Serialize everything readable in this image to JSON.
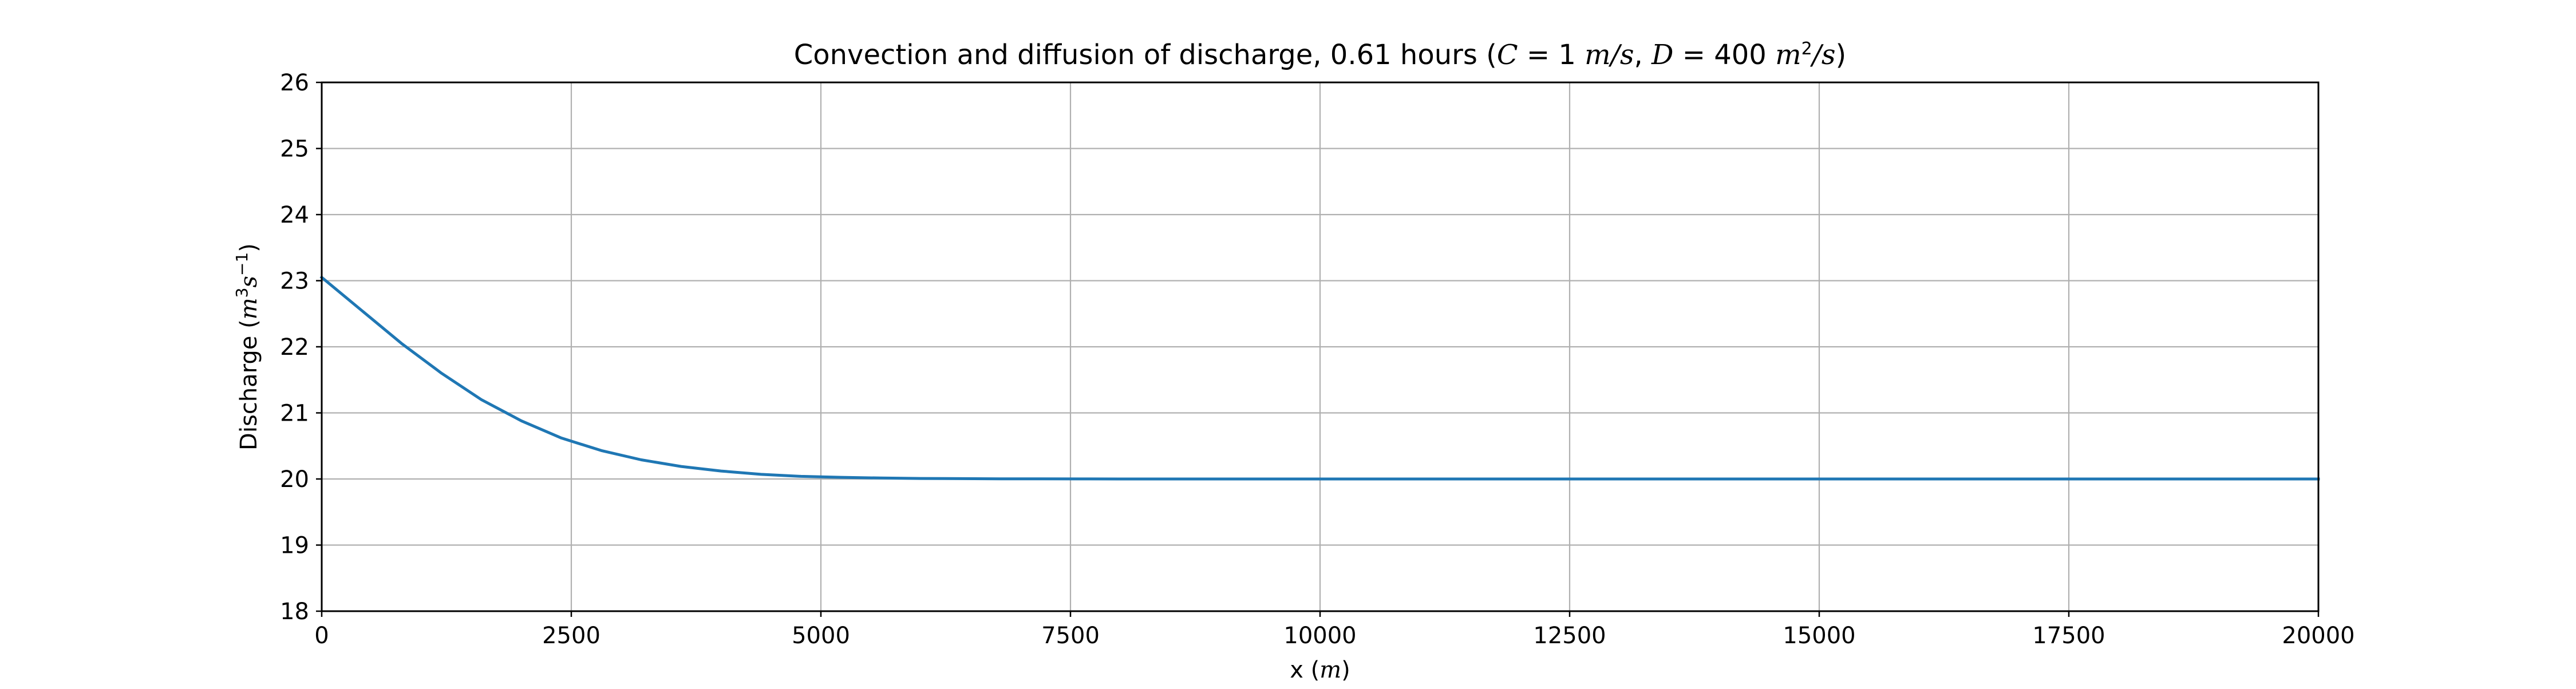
{
  "chart_data": {
    "type": "line",
    "title_parts": {
      "prefix": "Convection and diffusion of discharge, 0.61 hours (",
      "c_expr": "C",
      "c_eq": " = 1",
      "c_unit": "m/s",
      "sep": ", ",
      "d_expr": "D",
      "d_eq": " = 400",
      "d_unit": "m",
      "d_unit_exp": "2",
      "d_unit_tail": "/s",
      "suffix": ")"
    },
    "xlabel_parts": {
      "text": "x (",
      "unit": "m",
      "tail": ")"
    },
    "ylabel_parts": {
      "text": "Discharge (",
      "unit_m": "m",
      "exp_m": "3",
      "unit_s": "s",
      "exp_s": "−1",
      "tail": ")"
    },
    "xlim": [
      0,
      20000
    ],
    "ylim": [
      18,
      26
    ],
    "xticks": [
      0,
      2500,
      5000,
      7500,
      10000,
      12500,
      15000,
      17500,
      20000
    ],
    "yticks": [
      18,
      19,
      20,
      21,
      22,
      23,
      24,
      25,
      26
    ],
    "grid": true,
    "series": [
      {
        "color": "#1f77b4",
        "x": [
          0,
          400,
          800,
          1200,
          1600,
          2000,
          2400,
          2800,
          3200,
          3600,
          4000,
          4400,
          4800,
          5200,
          5600,
          6000,
          6400,
          6800,
          7200,
          7600,
          8000,
          10000,
          12000,
          14000,
          16000,
          18000,
          20000
        ],
        "y": [
          23.05,
          22.55,
          22.05,
          21.6,
          21.2,
          20.88,
          20.62,
          20.43,
          20.29,
          20.19,
          20.12,
          20.07,
          20.04,
          20.025,
          20.015,
          20.008,
          20.005,
          20.003,
          20.002,
          20.001,
          20.0,
          20.0,
          20.0,
          20.0,
          20.0,
          20.0,
          20.0
        ]
      }
    ]
  }
}
